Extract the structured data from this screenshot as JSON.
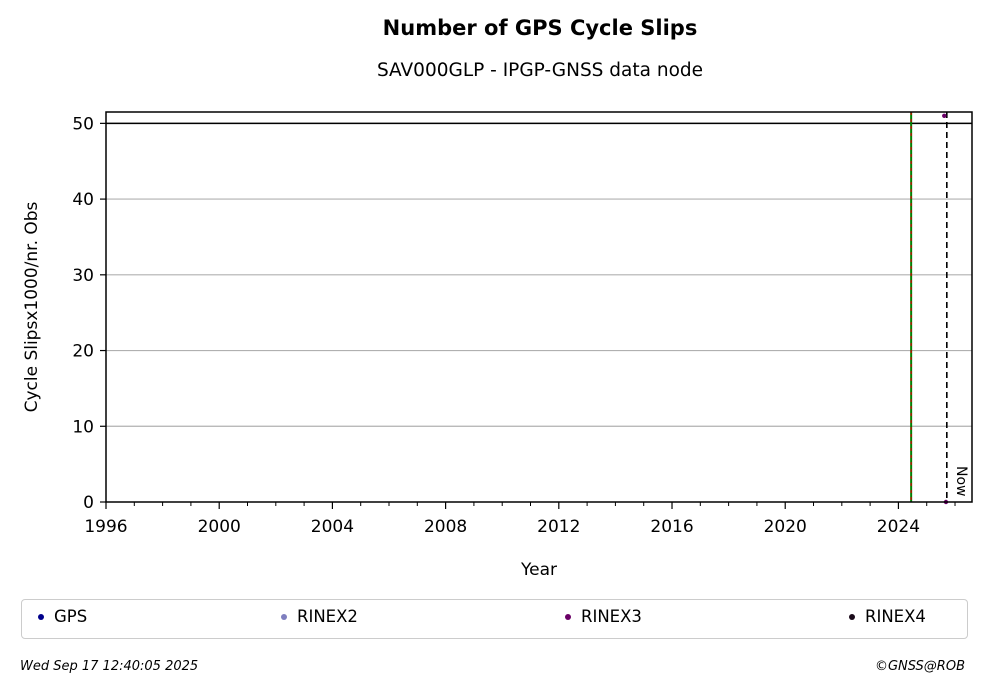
{
  "chart_data": {
    "type": "scatter",
    "title": "Number of GPS Cycle Slips",
    "subtitle": "SAV000GLP - IPGP-GNSS data node",
    "xlabel": "Year",
    "ylabel": "Cycle Slipsx1000/nr. Obs",
    "xlim": [
      1996,
      2026.6
    ],
    "ylim": [
      0,
      51.5
    ],
    "x_ticks": [
      1996,
      2000,
      2004,
      2008,
      2012,
      2016,
      2020,
      2024
    ],
    "x_tick_labels": [
      "1996",
      "2000",
      "2004",
      "2008",
      "2012",
      "2016",
      "2020",
      "2024"
    ],
    "y_ticks": [
      0,
      10,
      20,
      30,
      40,
      50
    ],
    "y_tick_labels": [
      "0",
      "10",
      "20",
      "30",
      "40",
      "50"
    ],
    "grid": "horizontal",
    "threshold_line": 50,
    "station_start_line": 2024.45,
    "now_line": 2025.71,
    "now_label": "Now",
    "series": [
      {
        "name": "GPS",
        "color": "#00008b",
        "points": []
      },
      {
        "name": "RINEX2",
        "color": "#7f7fbf",
        "points": []
      },
      {
        "name": "RINEX3",
        "color": "#6a0066",
        "points": [
          [
            2025.62,
            51
          ],
          [
            2025.68,
            0
          ]
        ]
      },
      {
        "name": "RINEX4",
        "color": "#1a0a1a",
        "points": []
      }
    ],
    "legend_position": "bottom"
  },
  "footer": {
    "timestamp": "Wed Sep 17 12:40:05 2025",
    "credit": "©GNSS@ROB"
  }
}
